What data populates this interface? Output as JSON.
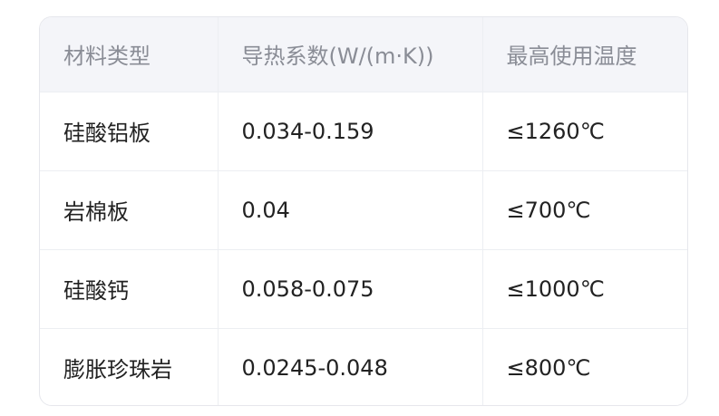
{
  "table": {
    "headers": [
      "材料类型",
      "导热系数(W/(m·K))",
      "最高使用温度"
    ],
    "rows": [
      [
        "硅酸铝板",
        "0.034-0.159",
        "≤1260℃"
      ],
      [
        "岩棉板",
        "0.04",
        "≤700℃"
      ],
      [
        "硅酸钙",
        "0.058-0.075",
        "≤1000℃"
      ],
      [
        "膨胀珍珠岩",
        "0.0245-0.048",
        "≤800℃"
      ]
    ]
  }
}
